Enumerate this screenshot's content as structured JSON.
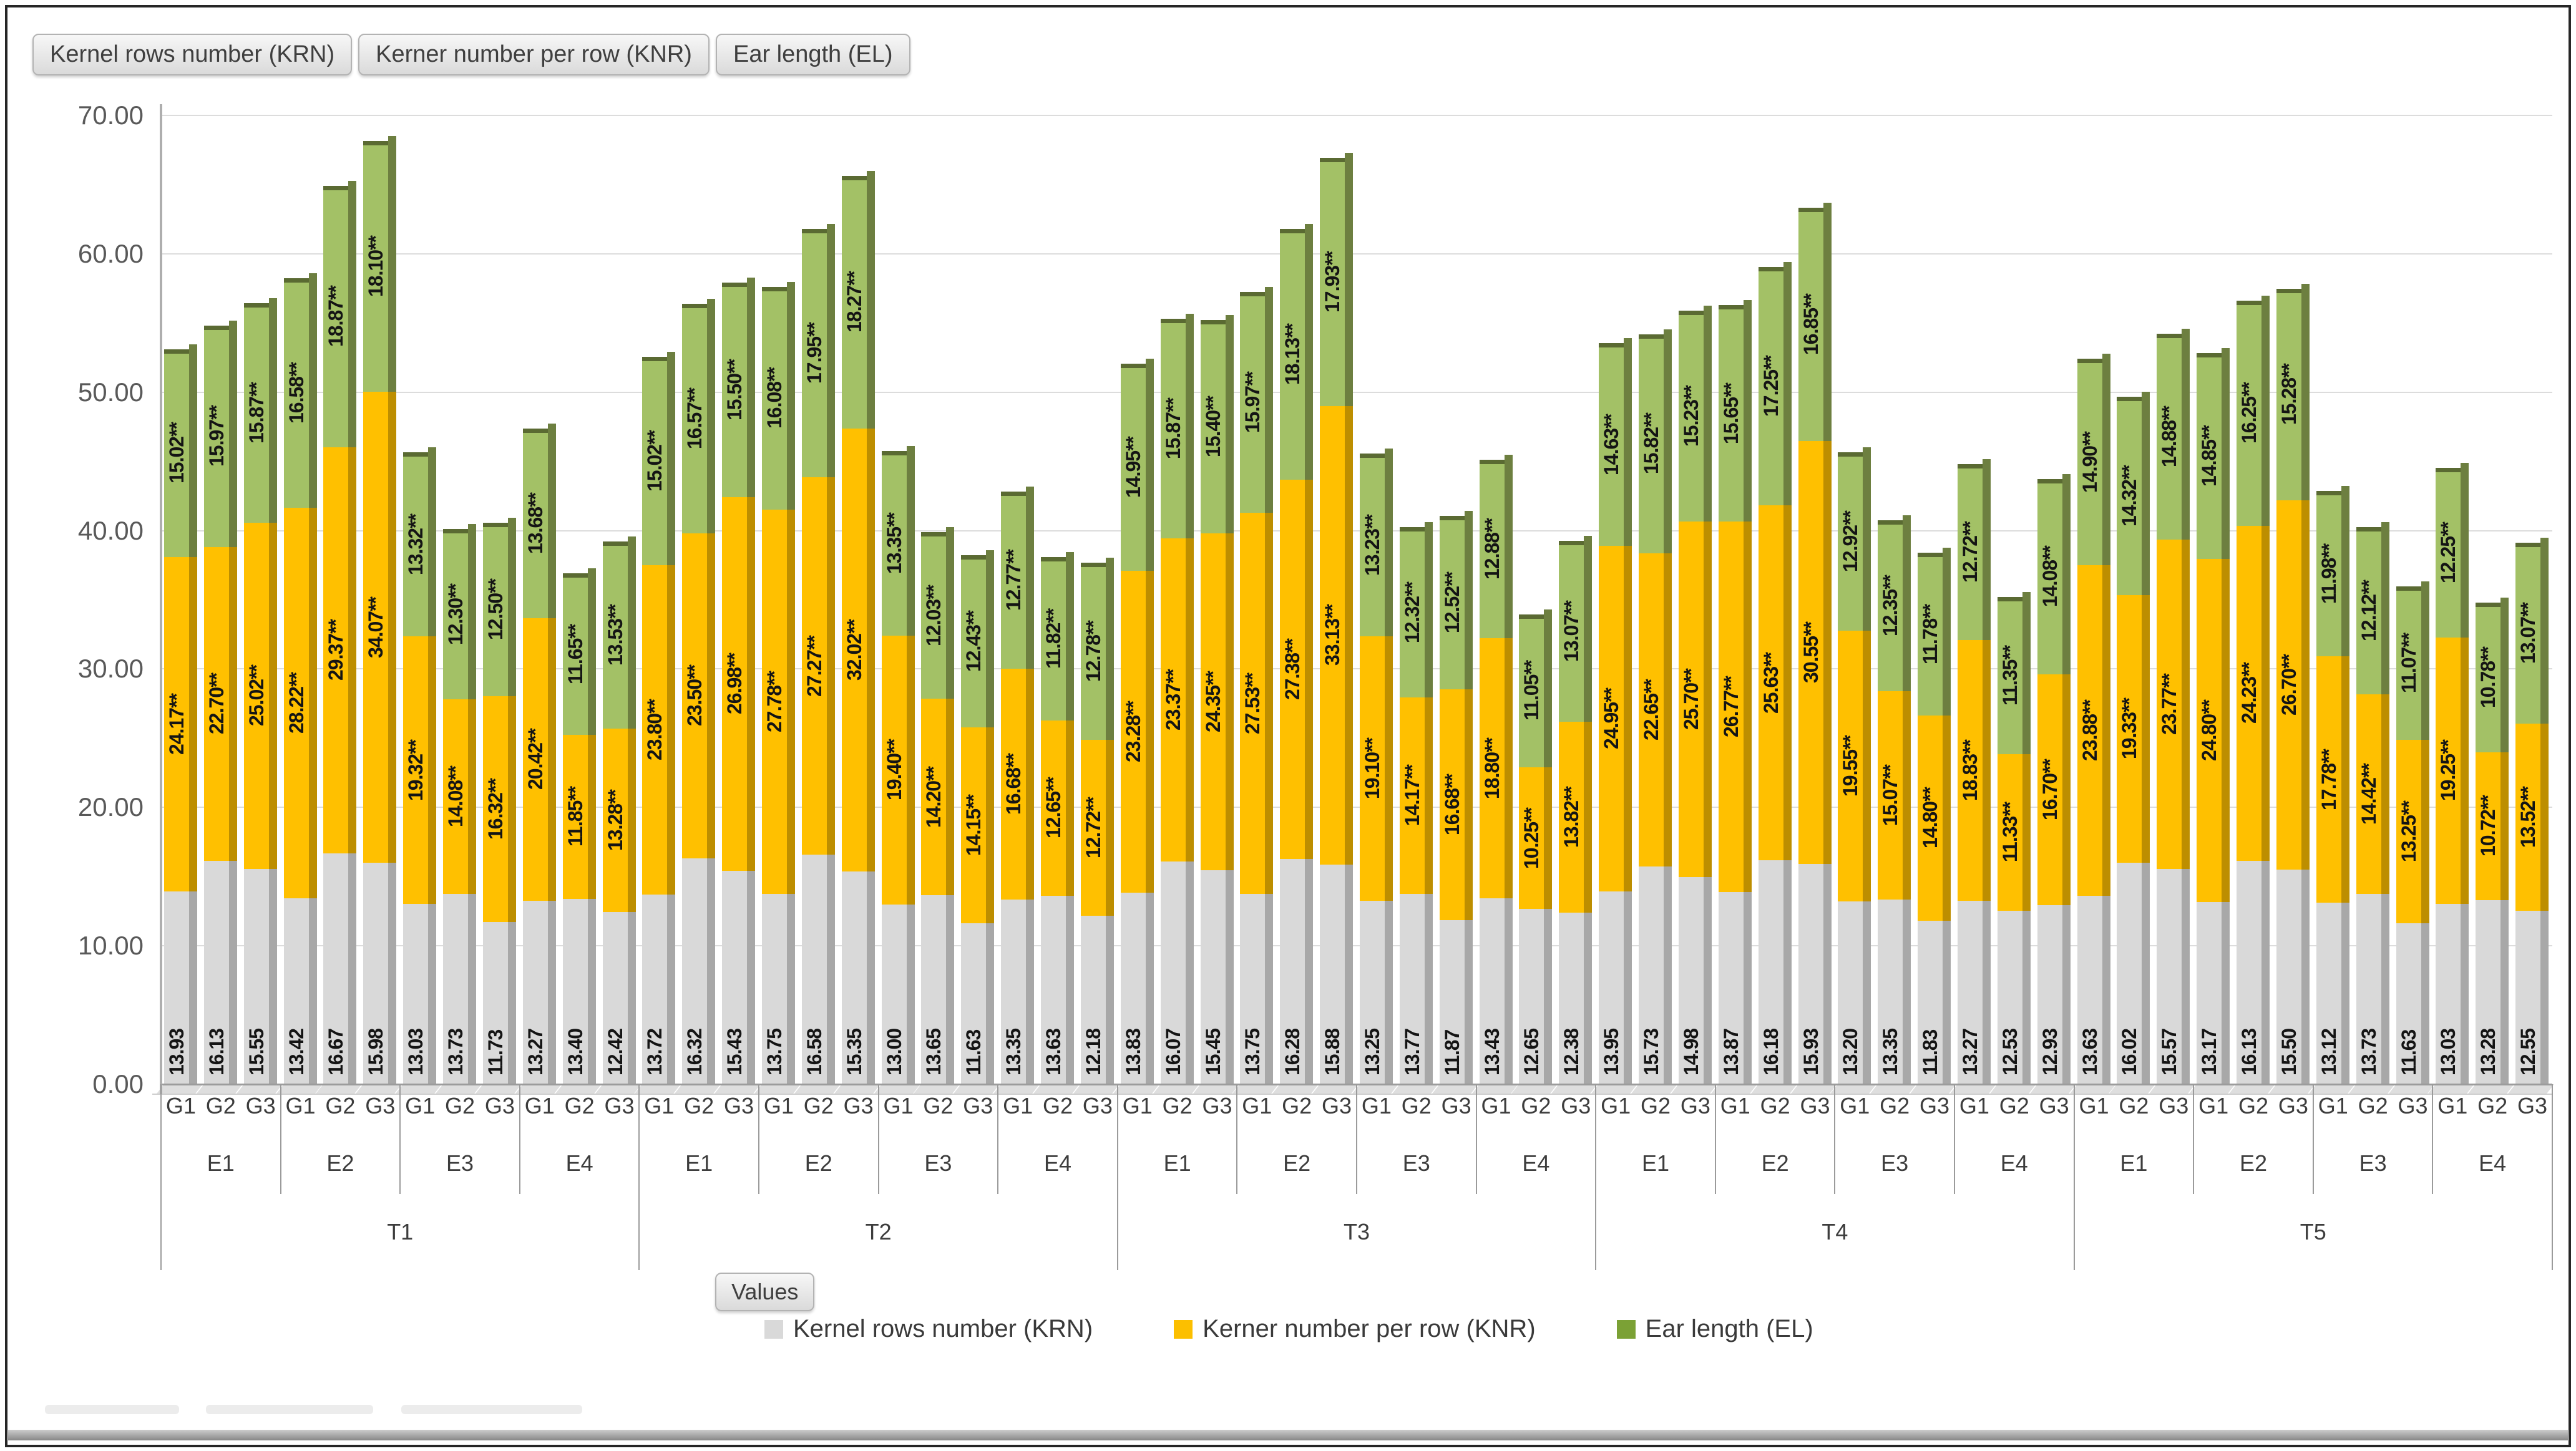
{
  "field_buttons": [
    "Kernel rows number (KRN)",
    "Kerner number per row (KNR)",
    "Ear length (EL)"
  ],
  "values_button": "Values",
  "legend": [
    {
      "label": "Kernel rows number (KRN)",
      "color": "#d9d9d9"
    },
    {
      "label": "Kerner number per row (KNR)",
      "color": "#fcbf00"
    },
    {
      "label": "Ear length (EL)",
      "color": "#7ba135"
    }
  ],
  "chart_data": {
    "type": "bar",
    "stacked": true,
    "title": "",
    "xlabel": "",
    "ylabel": "",
    "ylim": [
      0,
      70
    ],
    "yticks": [
      "70.00",
      "60.00",
      "50.00",
      "40.00",
      "30.00",
      "20.00",
      "10.00",
      "0.00"
    ],
    "grid": true,
    "legend_position": "bottom",
    "series": [
      {
        "name": "Kernel rows number (KRN)",
        "face": "#d9d9d9",
        "side": "#a8a8a8",
        "cap": "#bfbfbf"
      },
      {
        "name": "Kerner number per row (KNR)",
        "face": "#ffc000",
        "side": "#bd8e00",
        "cap": "#a37a00"
      },
      {
        "name": "Ear length (EL)",
        "face": "#a3c166",
        "side": "#6d7f40",
        "cap": "#5a6a32"
      }
    ],
    "treatments": [
      "T1",
      "T2",
      "T3",
      "T4",
      "T5"
    ],
    "environments": [
      "E1",
      "E2",
      "E3",
      "E4"
    ],
    "genotypes": [
      "G1",
      "G2",
      "G3"
    ],
    "note": "values per bar are [KRN, KNR, EL]; ** marks significance as printed",
    "groups": [
      {
        "t": "T1",
        "e": "E1",
        "values": [
          [
            "13.93",
            "24.17**",
            "15.02**"
          ],
          [
            "16.13",
            "22.70**",
            "15.97**"
          ],
          [
            "15.55",
            "25.02**",
            "15.87**"
          ]
        ]
      },
      {
        "t": "T1",
        "e": "E2",
        "values": [
          [
            "13.42",
            "28.22**",
            "16.58**"
          ],
          [
            "16.67",
            "29.37**",
            "18.87**"
          ],
          [
            "15.98",
            "34.07**",
            "18.10**"
          ]
        ]
      },
      {
        "t": "T1",
        "e": "E3",
        "values": [
          [
            "13.03",
            "19.32**",
            "13.32**"
          ],
          [
            "13.73",
            "14.08**",
            "12.30**"
          ],
          [
            "11.73",
            "16.32**",
            "12.50**"
          ]
        ]
      },
      {
        "t": "T1",
        "e": "E4",
        "values": [
          [
            "13.27",
            "20.42**",
            "13.68**"
          ],
          [
            "13.40",
            "11.85**",
            "11.65**"
          ],
          [
            "12.42",
            "13.28**",
            "13.53**"
          ]
        ]
      },
      {
        "t": "T2",
        "e": "E1",
        "values": [
          [
            "13.72",
            "23.80**",
            "15.02**"
          ],
          [
            "16.32",
            "23.50**",
            "16.57**"
          ],
          [
            "15.43",
            "26.98**",
            "15.50**"
          ]
        ]
      },
      {
        "t": "T2",
        "e": "E2",
        "values": [
          [
            "13.75",
            "27.78**",
            "16.08**"
          ],
          [
            "16.58",
            "27.27**",
            "17.95**"
          ],
          [
            "15.35",
            "32.02**",
            "18.27**"
          ]
        ]
      },
      {
        "t": "T2",
        "e": "E3",
        "values": [
          [
            "13.00",
            "19.40**",
            "13.35**"
          ],
          [
            "13.65",
            "14.20**",
            "12.03**"
          ],
          [
            "11.63",
            "14.15**",
            "12.43**"
          ]
        ]
      },
      {
        "t": "T2",
        "e": "E4",
        "values": [
          [
            "13.35",
            "16.68**",
            "12.77**"
          ],
          [
            "13.63",
            "12.65**",
            "11.82**"
          ],
          [
            "12.18",
            "12.72**",
            "12.78**"
          ]
        ]
      },
      {
        "t": "T3",
        "e": "E1",
        "values": [
          [
            "13.83",
            "23.28**",
            "14.95**"
          ],
          [
            "16.07",
            "23.37**",
            "15.87**"
          ],
          [
            "15.45",
            "24.35**",
            "15.40**"
          ]
        ]
      },
      {
        "t": "T3",
        "e": "E2",
        "values": [
          [
            "13.75",
            "27.53**",
            "15.97**"
          ],
          [
            "16.28",
            "27.38**",
            "18.13**"
          ],
          [
            "15.88",
            "33.13**",
            "17.93**"
          ]
        ]
      },
      {
        "t": "T3",
        "e": "E3",
        "values": [
          [
            "13.25",
            "19.10**",
            "13.23**"
          ],
          [
            "13.77",
            "14.17**",
            "12.32**"
          ],
          [
            "11.87",
            "16.68**",
            "12.52**"
          ]
        ]
      },
      {
        "t": "T3",
        "e": "E4",
        "values": [
          [
            "13.43",
            "18.80**",
            "12.88**"
          ],
          [
            "12.65",
            "10.25**",
            "11.05**"
          ],
          [
            "12.38",
            "13.82**",
            "13.07**"
          ]
        ]
      },
      {
        "t": "T4",
        "e": "E1",
        "values": [
          [
            "13.95",
            "24.95**",
            "14.63**"
          ],
          [
            "15.73",
            "22.65**",
            "15.82**"
          ],
          [
            "14.98",
            "25.70**",
            "15.23**"
          ]
        ]
      },
      {
        "t": "T4",
        "e": "E2",
        "values": [
          [
            "13.87",
            "26.77**",
            "15.65**"
          ],
          [
            "16.18",
            "25.63**",
            "17.25**"
          ],
          [
            "15.93",
            "30.55**",
            "16.85**"
          ]
        ]
      },
      {
        "t": "T4",
        "e": "E3",
        "values": [
          [
            "13.20",
            "19.55**",
            "12.92**"
          ],
          [
            "13.35",
            "15.07**",
            "12.35**"
          ],
          [
            "11.83",
            "14.80**",
            "11.78**"
          ]
        ]
      },
      {
        "t": "T4",
        "e": "E4",
        "values": [
          [
            "13.27",
            "18.83**",
            "12.72**"
          ],
          [
            "12.53",
            "11.33**",
            "11.35**"
          ],
          [
            "12.93",
            "16.70**",
            "14.08**"
          ]
        ]
      },
      {
        "t": "T5",
        "e": "E1",
        "values": [
          [
            "13.63",
            "23.88**",
            "14.90**"
          ],
          [
            "16.02",
            "19.33**",
            "14.32**"
          ],
          [
            "15.57",
            "23.77**",
            "14.88**"
          ]
        ]
      },
      {
        "t": "T5",
        "e": "E2",
        "values": [
          [
            "13.17",
            "24.80**",
            "14.85**"
          ],
          [
            "16.13",
            "24.23**",
            "16.25**"
          ],
          [
            "15.50",
            "26.70**",
            "15.28**"
          ]
        ]
      },
      {
        "t": "T5",
        "e": "E3",
        "values": [
          [
            "13.12",
            "17.78**",
            "11.98**"
          ],
          [
            "13.73",
            "14.42**",
            "12.12**"
          ],
          [
            "11.63",
            "13.25**",
            "11.07**"
          ]
        ]
      },
      {
        "t": "T5",
        "e": "E4",
        "values": [
          [
            "13.03",
            "19.25**",
            "12.25**"
          ],
          [
            "13.28",
            "10.72**",
            "10.78**"
          ],
          [
            "12.55",
            "13.52**",
            "13.07**"
          ]
        ]
      }
    ]
  }
}
